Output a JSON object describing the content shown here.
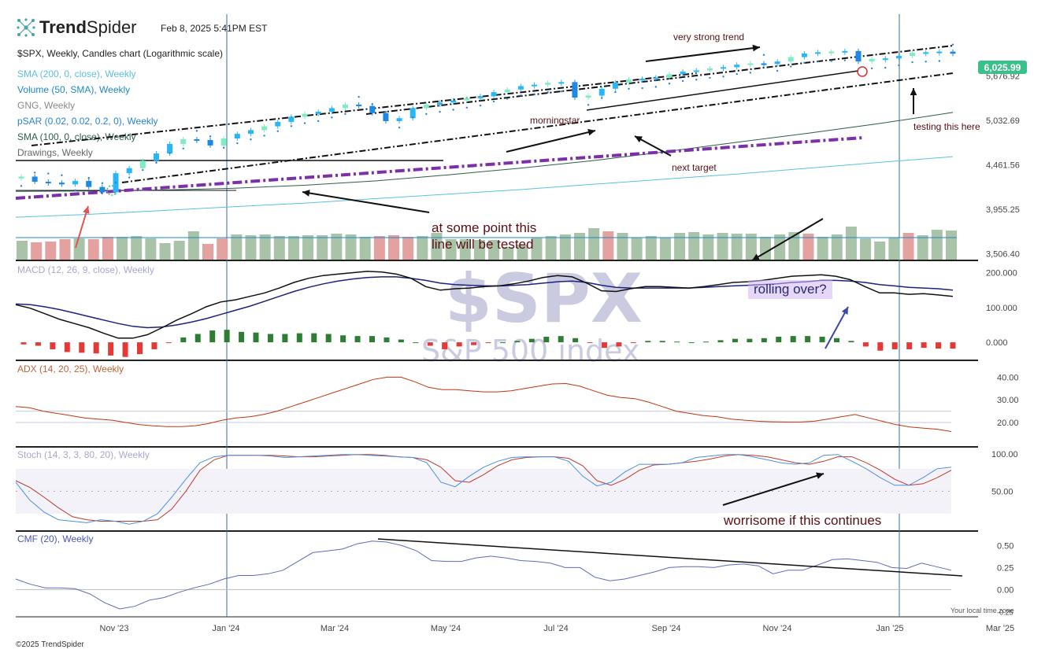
{
  "header": {
    "brand_strong": "Trend",
    "brand_light": "Spider",
    "timestamp": "Feb 8, 2025 5:41PM EST",
    "chart_title": "$SPX, Weekly, Candles chart (Logarithmic scale)",
    "copyright": "©2025 TrendSpider",
    "timezone_note": "Your local time zone"
  },
  "indicators": {
    "sma200": "SMA (200, 0, close), Weekly",
    "volume": "Volume (50, SMA), Weekly",
    "gng": "GNG, Weekly",
    "psar": "pSAR (0.02, 0.02, 0.2, 0), Weekly",
    "sma100": "SMA (100, 0, close), Weekly",
    "drawings": "Drawings, Weekly",
    "macd": "MACD (12, 26, 9, close), Weekly",
    "adx": "ADX (14, 20, 25), Weekly",
    "stoch": "Stoch (14, 3, 3, 80, 20), Weekly",
    "cmf": "CMF (20), Weekly"
  },
  "watermark": {
    "symbol": "$SPX",
    "name": "S&P 500 index"
  },
  "price_badge": "6,025.99",
  "annotations": {
    "very_strong_trend": "very strong trend",
    "morningstar": "morningstar",
    "next_target": "next target",
    "testing": "testing this here",
    "line_tested_1": "at some point this",
    "line_tested_2": "line will be tested",
    "rolling_over": "rolling over?",
    "worrisome": "worrisome if this continues"
  },
  "colors": {
    "up_candle": "#29b6f6",
    "up_candle_light": "#7dedc2",
    "down_candle": "#1e88e5",
    "vol_up": "#a8c3a8",
    "vol_down": "#e3a29f",
    "macd_line": "#111111",
    "signal_line": "#1a237e",
    "hist_pos": "#2e7d32",
    "hist_neg": "#e53935",
    "adx": "#bf360c",
    "stoch_k": "#4a90e2",
    "stoch_d": "#c0392b",
    "cmf": "#5c6bc0",
    "sma100": "#2e5d4b",
    "sma200": "#5bc0de",
    "trend_dash": "#7b2fa8",
    "accent_badge": "#3cc08a",
    "annot_red": "#e05353",
    "annot_blue": "#3949ab"
  },
  "chart_data": [
    {
      "type": "line",
      "title": "$SPX, Weekly, Candles chart (Logarithmic scale)",
      "scale": "log",
      "ylim": [
        3450,
        6400
      ],
      "y_ticks": [
        "6,025.99",
        "5,676.92",
        "5,032.69",
        "4,461.56",
        "3,955.25",
        "3,506.40"
      ],
      "x_ticks": [
        "Nov '23",
        "Jan '24",
        "Mar '24",
        "May '24",
        "Jul '24",
        "Sep '24",
        "Nov '24",
        "Jan '25",
        "Mar '25"
      ],
      "series": [
        {
          "name": "$SPX",
          "values": [
            4320,
            4260,
            4250,
            4230,
            4270,
            4200,
            4140,
            4360,
            4420,
            4510,
            4600,
            4720,
            4780,
            4770,
            4700,
            4790,
            4850,
            4900,
            4950,
            5010,
            5080,
            5120,
            5150,
            5200,
            5250,
            5230,
            5130,
            5020,
            5060,
            5200,
            5250,
            5280,
            5310,
            5340,
            5370,
            5430,
            5470,
            5520,
            5540,
            5570,
            5580,
            5350,
            5380,
            5480,
            5570,
            5620,
            5630,
            5650,
            5700,
            5740,
            5760,
            5790,
            5810,
            5850,
            5870,
            5860,
            5900,
            5970,
            6030,
            6050,
            6060,
            6070,
            5900,
            5940,
            5950,
            5990,
            6040,
            6050,
            6060,
            6026
          ]
        },
        {
          "name": "SMA (100, 0, close), Weekly",
          "values": [
            4150,
            4155,
            4165,
            4185,
            4220,
            4270,
            4340,
            4420,
            4510,
            4620,
            4740,
            4860,
            4990,
            5140
          ]
        },
        {
          "name": "SMA (200, 0, close), Weekly",
          "values": [
            3870,
            3900,
            3940,
            3980,
            4020,
            4070,
            4120,
            4170,
            4230,
            4290,
            4350,
            4420,
            4490,
            4560
          ]
        }
      ]
    },
    {
      "type": "bar",
      "title": "Volume (50, SMA), Weekly",
      "values": [
        24,
        22,
        23,
        26,
        27,
        26,
        29,
        29,
        30,
        27,
        21,
        24,
        36,
        20,
        27,
        32,
        31,
        32,
        30,
        30,
        31,
        31,
        33,
        32,
        29,
        30,
        31,
        29,
        30,
        34,
        26,
        26,
        25,
        25,
        16,
        19,
        28,
        30,
        32,
        34,
        40,
        36,
        34,
        28,
        30,
        28,
        34,
        35,
        32,
        34,
        33,
        33,
        29,
        32,
        35,
        33,
        29,
        32,
        42,
        27,
        23,
        28,
        34,
        31,
        38,
        37
      ]
    },
    {
      "type": "line",
      "title": "MACD (12, 26, 9, close), Weekly",
      "ylim": [
        -45,
        215
      ],
      "y_ticks": [
        "200.000",
        "100.000",
        "0.000"
      ],
      "series": [
        {
          "name": "MACD",
          "values": [
            108,
            98,
            82,
            66,
            54,
            42,
            26,
            12,
            12,
            22,
            42,
            64,
            82,
            102,
            116,
            122,
            132,
            142,
            156,
            172,
            184,
            192,
            196,
            200,
            204,
            202,
            196,
            184,
            160,
            150,
            154,
            156,
            160,
            162,
            168,
            176,
            186,
            192,
            188,
            170,
            148,
            146,
            154,
            160,
            160,
            158,
            156,
            160,
            166,
            172,
            174,
            178,
            184,
            190,
            192,
            194,
            190,
            180,
            160,
            142,
            142,
            138,
            140,
            136,
            132
          ]
        },
        {
          "name": "Signal",
          "values": [
            110,
            108,
            102,
            94,
            84,
            74,
            64,
            54,
            46,
            42,
            44,
            50,
            58,
            68,
            80,
            92,
            104,
            118,
            132,
            146,
            158,
            168,
            176,
            182,
            186,
            188,
            188,
            184,
            178,
            170,
            166,
            164,
            162,
            162,
            164,
            166,
            170,
            174,
            176,
            172,
            164,
            158,
            156,
            156,
            156,
            156,
            156,
            158,
            160,
            162,
            164,
            166,
            168,
            172,
            174,
            178,
            178,
            176,
            172,
            166,
            162,
            158,
            156,
            154,
            150
          ]
        },
        {
          "name": "Histogram",
          "values": [
            -6,
            -10,
            -20,
            -28,
            -30,
            -32,
            -38,
            -42,
            -34,
            -20,
            -2,
            14,
            24,
            34,
            36,
            30,
            28,
            24,
            24,
            26,
            26,
            24,
            20,
            18,
            18,
            14,
            8,
            0,
            -10,
            -20,
            -12,
            -8,
            -2,
            0,
            4,
            10,
            16,
            18,
            12,
            -2,
            -16,
            -12,
            -2,
            4,
            4,
            2,
            0,
            2,
            6,
            10,
            10,
            12,
            16,
            18,
            18,
            16,
            12,
            4,
            -12,
            -24,
            -20,
            -20,
            -16,
            -18,
            -18
          ]
        }
      ]
    },
    {
      "type": "line",
      "title": "ADX (14, 20, 25), Weekly",
      "ylim": [
        12,
        45
      ],
      "y_ticks": [
        "40.00",
        "30.00",
        "20.00"
      ],
      "series": [
        {
          "name": "ADX",
          "values": [
            27,
            26.5,
            25,
            24,
            23,
            22,
            21.5,
            21,
            20,
            19,
            18.5,
            18.2,
            18.2,
            18.5,
            19.5,
            21,
            22,
            22.5,
            23.5,
            25,
            27,
            29,
            31,
            33,
            35,
            37,
            39,
            40,
            40,
            38,
            35.5,
            34.5,
            34.5,
            34,
            33.5,
            33.5,
            34,
            35,
            36,
            37,
            37.2,
            36,
            34,
            32,
            31,
            30.5,
            29,
            27,
            25,
            24,
            23,
            22.5,
            21.5,
            21,
            20.5,
            20.3,
            20.2,
            20.2,
            20.5,
            21.5,
            22.5,
            23.5,
            22,
            20.5,
            19,
            18,
            17.5,
            17,
            16
          ]
        }
      ]
    },
    {
      "type": "line",
      "title": "Stoch (14, 3, 3, 80, 20), Weekly",
      "ylim": [
        0,
        105
      ],
      "y_ticks": [
        "100.00",
        "50.00"
      ],
      "series": [
        {
          "name": "%K",
          "values": [
            62,
            38,
            22,
            12,
            10,
            8,
            12,
            10,
            6,
            10,
            20,
            42,
            66,
            88,
            96,
            98,
            98,
            98,
            97,
            95,
            96,
            97,
            98,
            99,
            99,
            98,
            97,
            96,
            95,
            88,
            62,
            56,
            70,
            82,
            90,
            95,
            96,
            96,
            96,
            90,
            70,
            57,
            62,
            76,
            86,
            86,
            86,
            88,
            95,
            97,
            99,
            99,
            96,
            92,
            88,
            86,
            88,
            98,
            99,
            90,
            80,
            68,
            58,
            58,
            68,
            80,
            82
          ]
        },
        {
          "name": "%D",
          "values": [
            64,
            55,
            42,
            28,
            16,
            12,
            10,
            10,
            10,
            10,
            12,
            26,
            50,
            78,
            92,
            98,
            98,
            98,
            98,
            97,
            96,
            96,
            97,
            98,
            99,
            99,
            98,
            96,
            95,
            92,
            82,
            64,
            62,
            72,
            84,
            92,
            95,
            96,
            96,
            94,
            84,
            64,
            58,
            66,
            78,
            85,
            86,
            88,
            90,
            93,
            97,
            99,
            98,
            96,
            92,
            88,
            86,
            90,
            96,
            96,
            88,
            78,
            66,
            58,
            60,
            68,
            78
          ]
        }
      ]
    },
    {
      "type": "line",
      "title": "CMF (20), Weekly",
      "ylim": [
        -0.3,
        0.62
      ],
      "y_ticks": [
        "0.50",
        "0.25",
        "0.00",
        "-0.25"
      ],
      "series": [
        {
          "name": "CMF",
          "values": [
            0.12,
            0.06,
            0.02,
            0.02,
            0.01,
            -0.05,
            -0.15,
            -0.22,
            -0.19,
            -0.12,
            -0.09,
            -0.03,
            0.02,
            0.06,
            0.12,
            0.16,
            0.16,
            0.18,
            0.22,
            0.32,
            0.42,
            0.44,
            0.46,
            0.52,
            0.55,
            0.54,
            0.5,
            0.44,
            0.33,
            0.32,
            0.32,
            0.36,
            0.38,
            0.36,
            0.33,
            0.32,
            0.3,
            0.25,
            0.25,
            0.14,
            0.1,
            0.12,
            0.16,
            0.2,
            0.25,
            0.26,
            0.26,
            0.25,
            0.28,
            0.29,
            0.27,
            0.18,
            0.22,
            0.22,
            0.28,
            0.34,
            0.35,
            0.33,
            0.31,
            0.25,
            0.24,
            0.3,
            0.26,
            0.22
          ]
        }
      ]
    }
  ]
}
